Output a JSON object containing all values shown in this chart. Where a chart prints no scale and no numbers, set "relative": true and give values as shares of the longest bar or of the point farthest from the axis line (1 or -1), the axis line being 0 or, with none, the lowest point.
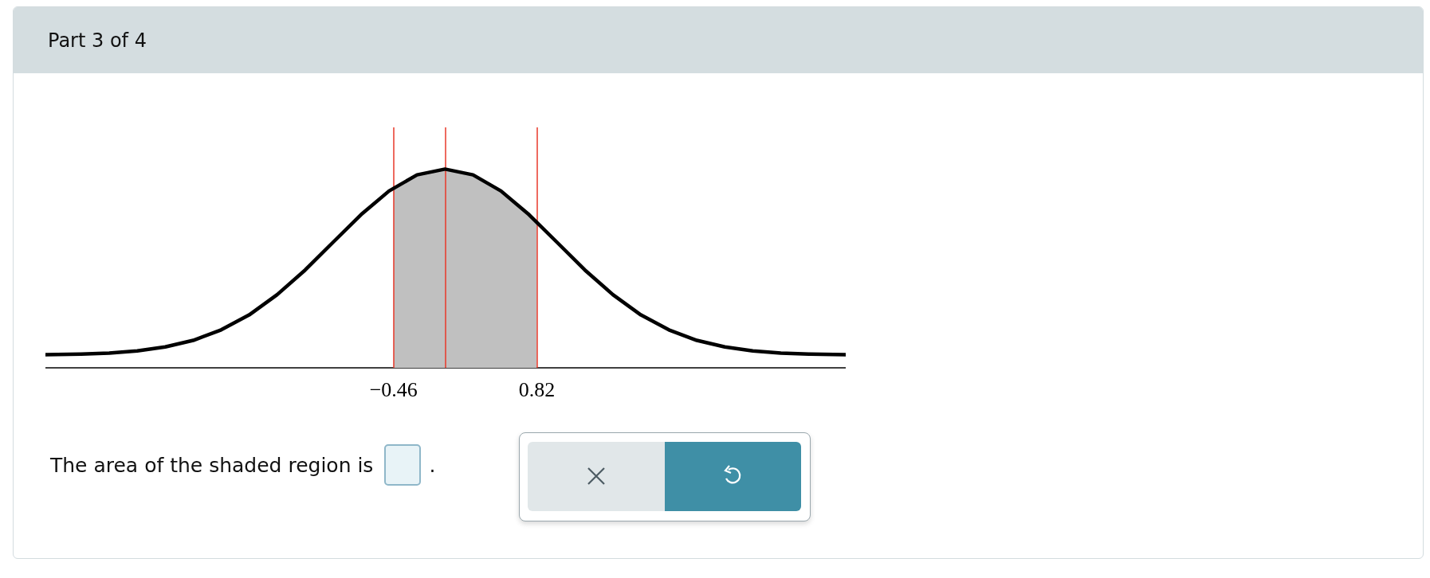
{
  "chart_data": {
    "type": "area",
    "title": "Part 3 of 4",
    "relative": true,
    "xlim": [
      -3.57,
      3.58
    ],
    "xticks": [
      {
        "value": -0.46,
        "label": "−0.46"
      },
      {
        "value": 0.82,
        "label": "0.82"
      }
    ],
    "series": [
      {
        "color": "#c0c0c0",
        "x": [
          -0.46,
          -0.25,
          0,
          0.25,
          0.5,
          0.75,
          0.82
        ],
        "values": [
          0.906,
          0.971,
          1.0,
          0.971,
          0.89,
          0.771,
          0.733
        ]
      },
      {
        "type": "line",
        "color": "#000000",
        "x": [
          -3.57,
          -3.25,
          -3,
          -2.75,
          -2.5,
          -2.25,
          -2,
          -1.75,
          -1.5,
          -1.25,
          -1,
          -0.75,
          -0.5,
          -0.25,
          0,
          0.25,
          0.5,
          0.75,
          1,
          1.25,
          1.5,
          1.75,
          2,
          2.25,
          2.5,
          2.75,
          3,
          3.25,
          3.58
        ],
        "values": [
          0.066,
          0.069,
          0.074,
          0.085,
          0.105,
          0.138,
          0.191,
          0.266,
          0.368,
          0.492,
          0.632,
          0.771,
          0.89,
          0.971,
          1.0,
          0.971,
          0.89,
          0.771,
          0.632,
          0.492,
          0.368,
          0.266,
          0.191,
          0.138,
          0.105,
          0.085,
          0.074,
          0.069,
          0.066
        ]
      }
    ],
    "ref_lines": [
      {
        "axis": "x",
        "value": -0.46,
        "color": "#e8392a"
      },
      {
        "axis": "x",
        "value": 0,
        "color": "#e8392a"
      },
      {
        "axis": "x",
        "value": 0.82,
        "color": "#e8392a"
      }
    ],
    "annotations": [
      "The area of the shaded region is",
      "."
    ]
  }
}
